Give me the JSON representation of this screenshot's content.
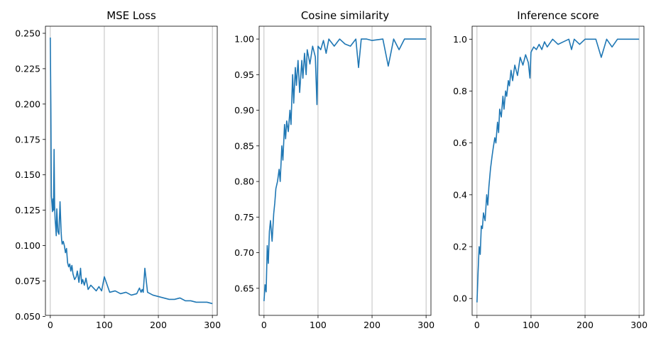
{
  "chart_data": [
    {
      "type": "line",
      "title": "MSE Loss",
      "xlabel": "",
      "ylabel": "",
      "xlim": [
        -9,
        309
      ],
      "ylim": [
        0.0507,
        0.255
      ],
      "x_ticks": [
        0,
        100,
        200,
        300
      ],
      "x_tick_labels": [
        "0",
        "100",
        "200",
        "300"
      ],
      "y_ticks": [
        0.05,
        0.075,
        0.1,
        0.125,
        0.15,
        0.175,
        0.2,
        0.225,
        0.25
      ],
      "y_tick_labels": [
        "0.050",
        "0.075",
        "0.100",
        "0.125",
        "0.150",
        "0.175",
        "0.200",
        "0.225",
        "0.250"
      ],
      "grid": "x-axis vertical lines",
      "color": "#1f77b4",
      "series": [
        {
          "x": [
            0,
            1,
            2,
            3,
            4,
            5,
            6,
            7,
            8,
            9,
            10,
            11,
            12,
            14,
            16,
            18,
            20,
            21,
            22,
            24,
            26,
            28,
            30,
            32,
            34,
            36,
            38,
            40,
            42,
            45,
            48,
            50,
            53,
            56,
            58,
            60,
            63,
            66,
            70,
            75,
            80,
            85,
            90,
            95,
            100,
            110,
            120,
            130,
            140,
            150,
            160,
            165,
            168,
            170,
            172,
            175,
            180,
            185,
            190,
            200,
            210,
            220,
            230,
            240,
            250,
            260,
            270,
            280,
            290,
            300
          ],
          "y": [
            0.247,
            0.2,
            0.135,
            0.13,
            0.124,
            0.133,
            0.125,
            0.168,
            0.128,
            0.118,
            0.113,
            0.107,
            0.126,
            0.11,
            0.108,
            0.131,
            0.11,
            0.104,
            0.101,
            0.103,
            0.1,
            0.095,
            0.098,
            0.088,
            0.085,
            0.087,
            0.082,
            0.086,
            0.08,
            0.076,
            0.078,
            0.082,
            0.074,
            0.084,
            0.073,
            0.076,
            0.072,
            0.077,
            0.069,
            0.072,
            0.07,
            0.068,
            0.071,
            0.068,
            0.078,
            0.067,
            0.068,
            0.066,
            0.067,
            0.065,
            0.066,
            0.07,
            0.067,
            0.069,
            0.067,
            0.084,
            0.067,
            0.066,
            0.065,
            0.064,
            0.063,
            0.062,
            0.062,
            0.063,
            0.061,
            0.061,
            0.06,
            0.06,
            0.06,
            0.059
          ]
        }
      ]
    },
    {
      "type": "line",
      "title": "Cosine similarity",
      "xlabel": "",
      "ylabel": "",
      "xlim": [
        -9,
        309
      ],
      "ylim": [
        0.612,
        1.018
      ],
      "x_ticks": [
        0,
        100,
        200,
        300
      ],
      "x_tick_labels": [
        "0",
        "100",
        "200",
        "300"
      ],
      "y_ticks": [
        0.65,
        0.7,
        0.75,
        0.8,
        0.85,
        0.9,
        0.95,
        1.0
      ],
      "y_tick_labels": [
        "0.65",
        "0.70",
        "0.75",
        "0.80",
        "0.85",
        "0.90",
        "0.95",
        "1.00"
      ],
      "grid": "x-axis vertical lines",
      "color": "#1f77b4",
      "series": [
        {
          "x": [
            0,
            2,
            4,
            6,
            8,
            10,
            12,
            15,
            18,
            20,
            22,
            25,
            28,
            30,
            33,
            35,
            38,
            40,
            42,
            45,
            48,
            50,
            53,
            55,
            58,
            60,
            63,
            66,
            70,
            72,
            75,
            78,
            80,
            85,
            90,
            95,
            98,
            100,
            105,
            110,
            115,
            120,
            125,
            130,
            140,
            150,
            160,
            170,
            175,
            180,
            190,
            200,
            220,
            230,
            240,
            250,
            260,
            280,
            300
          ],
          "y": [
            0.632,
            0.655,
            0.645,
            0.71,
            0.685,
            0.73,
            0.745,
            0.716,
            0.755,
            0.77,
            0.79,
            0.8,
            0.817,
            0.8,
            0.85,
            0.83,
            0.88,
            0.86,
            0.885,
            0.87,
            0.9,
            0.88,
            0.95,
            0.91,
            0.96,
            0.935,
            0.97,
            0.925,
            0.97,
            0.945,
            0.98,
            0.95,
            0.985,
            0.965,
            0.99,
            0.975,
            0.908,
            0.99,
            0.985,
            0.998,
            0.98,
            1.0,
            0.995,
            0.99,
            1.0,
            0.993,
            0.99,
            1.0,
            0.96,
            1.0,
            1.0,
            0.998,
            1.0,
            0.962,
            1.0,
            0.985,
            1.0,
            1.0,
            1.0
          ]
        }
      ]
    },
    {
      "type": "line",
      "title": "Inference score",
      "xlabel": "",
      "ylabel": "",
      "xlim": [
        -9,
        309
      ],
      "ylim": [
        -0.065,
        1.05
      ],
      "x_ticks": [
        0,
        100,
        200,
        300
      ],
      "x_tick_labels": [
        "0",
        "100",
        "200",
        "300"
      ],
      "y_ticks": [
        0.0,
        0.2,
        0.4,
        0.6,
        0.8,
        1.0
      ],
      "y_tick_labels": [
        "0.0",
        "0.2",
        "0.4",
        "0.6",
        "0.8",
        "1.0"
      ],
      "grid": "x-axis vertical lines",
      "color": "#1f77b4",
      "series": [
        {
          "x": [
            0,
            2,
            4,
            6,
            8,
            10,
            12,
            15,
            18,
            20,
            22,
            25,
            28,
            30,
            33,
            35,
            38,
            40,
            42,
            45,
            48,
            50,
            53,
            55,
            58,
            60,
            63,
            66,
            70,
            75,
            80,
            85,
            90,
            95,
            98,
            100,
            105,
            110,
            115,
            120,
            125,
            130,
            140,
            150,
            160,
            170,
            175,
            180,
            190,
            200,
            220,
            230,
            240,
            250,
            260,
            280,
            300
          ],
          "y": [
            -0.015,
            0.1,
            0.2,
            0.17,
            0.28,
            0.27,
            0.33,
            0.3,
            0.4,
            0.36,
            0.43,
            0.5,
            0.55,
            0.58,
            0.62,
            0.6,
            0.68,
            0.64,
            0.73,
            0.7,
            0.78,
            0.73,
            0.8,
            0.78,
            0.84,
            0.82,
            0.88,
            0.84,
            0.9,
            0.86,
            0.93,
            0.9,
            0.94,
            0.91,
            0.85,
            0.95,
            0.97,
            0.96,
            0.98,
            0.96,
            0.99,
            0.97,
            1.0,
            0.98,
            0.99,
            1.0,
            0.96,
            1.0,
            0.98,
            1.0,
            1.0,
            0.93,
            1.0,
            0.97,
            1.0,
            1.0,
            1.0
          ]
        }
      ]
    }
  ]
}
